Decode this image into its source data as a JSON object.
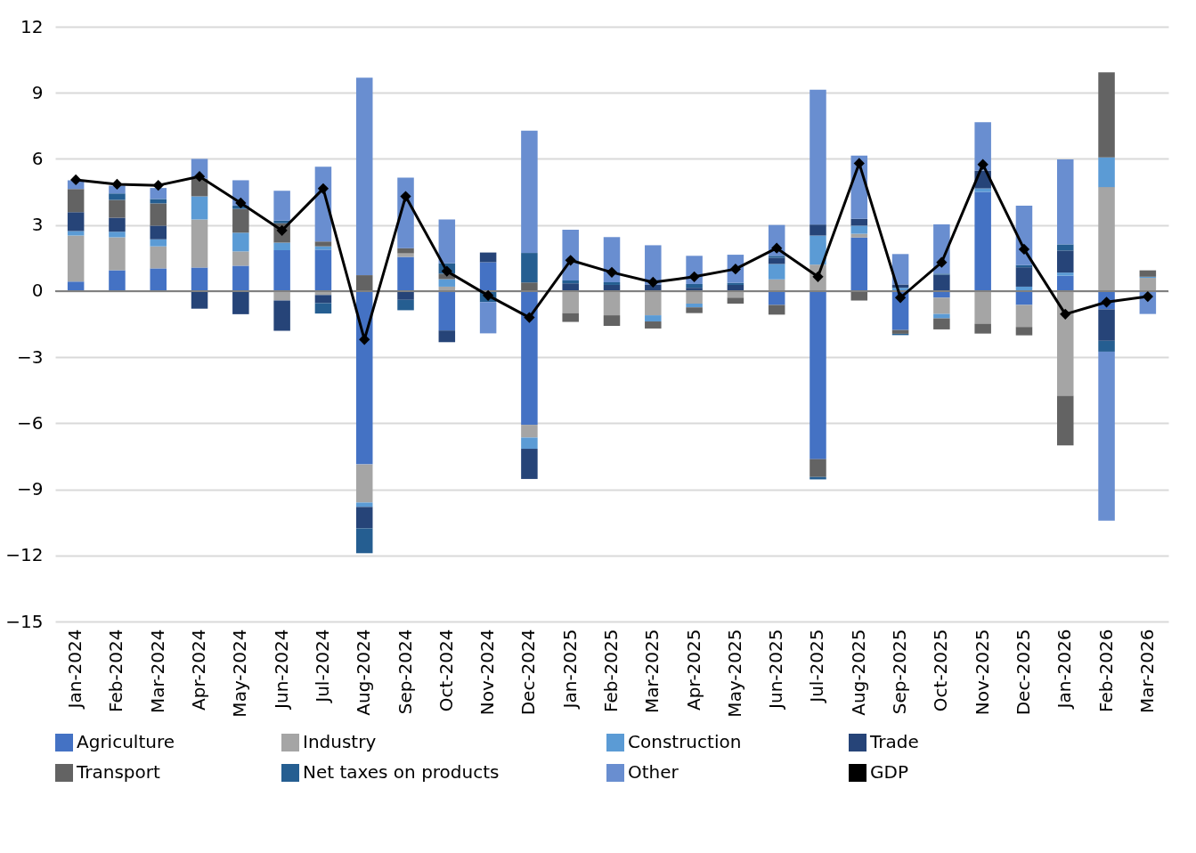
{
  "chart_data": {
    "type": "bar",
    "stacked": true,
    "categories": [
      "Jan-2024",
      "Feb-2024",
      "Mar-2024",
      "Apr-2024",
      "May-2024",
      "Jun-2024",
      "Jul-2024",
      "Aug-2024",
      "Sep-2024",
      "Oct-2024",
      "Nov-2024",
      "Dec-2024",
      "Jan-2025",
      "Feb-2025",
      "Mar-2025",
      "Apr-2025",
      "May-2025",
      "Jun-2025",
      "Jul-2025",
      "Aug-2025",
      "Sep-2025",
      "Oct-2025",
      "Nov-2025",
      "Dec-2025",
      "Jan-2026",
      "Feb-2026",
      "Mar-2026"
    ],
    "series": [
      {
        "name": "Agriculture",
        "color": "#4472c4",
        "values": [
          0.43,
          0.95,
          1.03,
          1.07,
          1.15,
          1.85,
          1.88,
          -7.87,
          1.55,
          -1.79,
          1.31,
          -6.07,
          0,
          0,
          0,
          0,
          null,
          -0.63,
          -7.63,
          2.43,
          -1.77,
          -0.3,
          4.5,
          -0.63,
          0.7,
          -0.83,
          null
        ]
      },
      {
        "name": "Industry",
        "color": "#a5a5a5",
        "values": [
          2.09,
          1.49,
          1.0,
          2.18,
          0.65,
          -0.43,
          -0.18,
          -1.73,
          0.16,
          0.2,
          0,
          -0.58,
          -1.0,
          -1.1,
          -1.1,
          -0.57,
          -0.3,
          0.53,
          1.2,
          0.17,
          0,
          -0.74,
          -1.48,
          -1.0,
          -4.75,
          4.72,
          0.6
        ]
      },
      {
        "name": "Construction",
        "color": "#5b9bd5",
        "values": [
          0.2,
          0.25,
          0.32,
          1.05,
          0.85,
          0.35,
          0.15,
          -0.2,
          0,
          0.34,
          0,
          -0.51,
          0,
          0,
          -0.28,
          -0.17,
          null,
          0.7,
          1.32,
          0.37,
          0.15,
          -0.2,
          0.16,
          0.2,
          0.14,
          1.35,
          0.05
        ]
      },
      {
        "name": "Trade",
        "color": "#264478",
        "values": [
          0.86,
          0.64,
          0.62,
          -0.8,
          -1.05,
          -1.37,
          -0.37,
          -0.97,
          -0.4,
          -0.53,
          0.44,
          -1.37,
          0.35,
          0.28,
          0.3,
          0.15,
          0.28,
          0.28,
          0.5,
          0.31,
          0.15,
          0.74,
          0.81,
          0.88,
          1.0,
          -1.43,
          0
        ]
      },
      {
        "name": "Transport",
        "color": "#636363",
        "values": [
          1.05,
          0.81,
          1.01,
          0.8,
          1.08,
          0.88,
          0.22,
          0.72,
          0.24,
          0.25,
          0,
          0.39,
          -0.4,
          -0.48,
          -0.32,
          -0.26,
          -0.27,
          -0.44,
          -0.81,
          -0.43,
          -0.17,
          -0.5,
          -0.45,
          -0.38,
          -2.26,
          3.86,
          0.29
        ]
      },
      {
        "name": "Net taxes on products",
        "color": "#255e91",
        "values": [
          0,
          0.29,
          0.2,
          0,
          0.15,
          0.12,
          -0.47,
          -1.13,
          -0.47,
          0.47,
          -0.5,
          1.34,
          0.13,
          0.12,
          0,
          0.17,
          0.09,
          0.09,
          -0.11,
          0,
          -0.06,
          0.05,
          0,
          0.1,
          0.28,
          -0.49,
          0
        ]
      },
      {
        "name": "Other",
        "color": "#698ed0",
        "values": [
          0.4,
          0.36,
          0.5,
          0.9,
          1.15,
          1.35,
          3.39,
          8.97,
          3.2,
          1.99,
          -1.42,
          5.55,
          2.3,
          2.05,
          1.78,
          1.28,
          1.28,
          1.4,
          6.12,
          2.87,
          1.38,
          2.24,
          2.19,
          2.7,
          3.86,
          -7.67,
          -1.04
        ]
      },
      {
        "name": "GDP",
        "type": "line",
        "color": "#000000",
        "marker": "diamond",
        "values": [
          5.05,
          4.85,
          4.8,
          5.2,
          4.0,
          2.75,
          4.65,
          -2.2,
          4.3,
          0.9,
          -0.2,
          -1.2,
          1.4,
          0.85,
          0.4,
          0.65,
          1.0,
          1.95,
          0.65,
          5.8,
          -0.3,
          1.3,
          5.75,
          1.9,
          -1.05,
          -0.5,
          -0.25
        ]
      }
    ],
    "ylim": [
      -15,
      12
    ],
    "yticks": [
      -15,
      -12,
      -9,
      -6,
      -3,
      0,
      3,
      6,
      9,
      12
    ],
    "ref_lines": [
      {
        "axis": "y",
        "value": 0,
        "color": "#808080"
      }
    ],
    "grid": "y",
    "legend": "bottom"
  }
}
